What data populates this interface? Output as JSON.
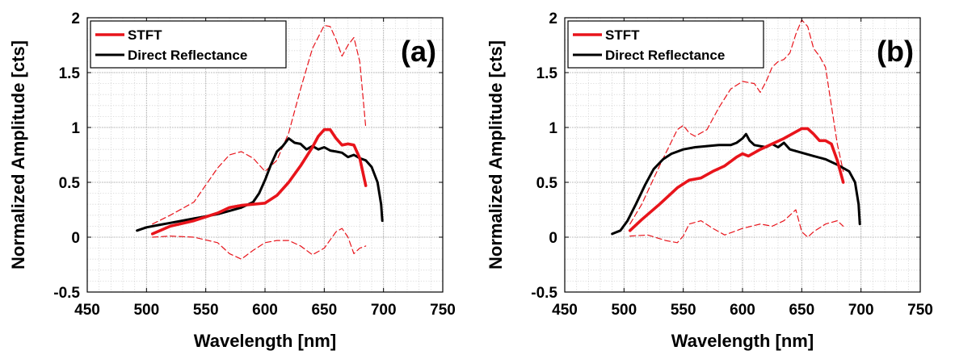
{
  "chart_data": [
    {
      "type": "line",
      "panel_label": "(a)",
      "xlabel": "Wavelength [nm]",
      "ylabel": "Normalized Amplitude [cts]",
      "xlim": [
        450,
        750
      ],
      "ylim": [
        -0.5,
        2
      ],
      "xticks": [
        "450",
        "500",
        "550",
        "600",
        "650",
        "700",
        "750"
      ],
      "yticks": [
        "-0.5",
        "0",
        "0.5",
        "1",
        "1.5",
        "2"
      ],
      "grid": "major and minor, dotted",
      "legend_position": "top-left",
      "legend": [
        "STFT",
        "Direct Reflectance"
      ],
      "colors": {
        "stft": "#e8141b",
        "direct": "#000000"
      },
      "series": [
        {
          "name": "STFT",
          "style": "solid",
          "color": "#e8141b",
          "x": [
            505,
            520,
            540,
            560,
            570,
            580,
            590,
            600,
            610,
            620,
            630,
            640,
            645,
            650,
            655,
            660,
            665,
            670,
            675,
            680,
            685
          ],
          "y": [
            0.03,
            0.1,
            0.15,
            0.22,
            0.27,
            0.29,
            0.3,
            0.31,
            0.38,
            0.5,
            0.65,
            0.82,
            0.92,
            0.98,
            0.98,
            0.9,
            0.84,
            0.85,
            0.84,
            0.72,
            0.47
          ]
        },
        {
          "name": "STFT upper bound",
          "style": "dashed",
          "color": "#e8141b",
          "x": [
            505,
            520,
            540,
            560,
            570,
            580,
            590,
            600,
            610,
            620,
            630,
            640,
            650,
            655,
            660,
            665,
            670,
            675,
            680,
            685
          ],
          "y": [
            0.12,
            0.2,
            0.32,
            0.63,
            0.75,
            0.78,
            0.72,
            0.6,
            0.7,
            0.95,
            1.35,
            1.72,
            1.93,
            1.92,
            1.8,
            1.65,
            1.75,
            1.82,
            1.6,
            1.0
          ]
        },
        {
          "name": "STFT lower bound",
          "style": "dashed",
          "color": "#e8141b",
          "x": [
            505,
            520,
            540,
            560,
            570,
            580,
            590,
            600,
            610,
            620,
            630,
            640,
            650,
            660,
            665,
            670,
            675,
            680,
            685
          ],
          "y": [
            0.0,
            0.01,
            0.0,
            -0.05,
            -0.15,
            -0.2,
            -0.12,
            -0.05,
            -0.03,
            -0.03,
            -0.08,
            -0.16,
            -0.1,
            0.05,
            0.08,
            0.0,
            -0.15,
            -0.1,
            -0.08
          ]
        },
        {
          "name": "Direct Reflectance",
          "style": "solid",
          "color": "#000000",
          "x": [
            492,
            500,
            510,
            520,
            530,
            540,
            550,
            560,
            570,
            580,
            590,
            595,
            600,
            605,
            610,
            615,
            620,
            625,
            630,
            635,
            640,
            645,
            650,
            655,
            660,
            665,
            670,
            675,
            680,
            685,
            690,
            695,
            698,
            699
          ],
          "y": [
            0.06,
            0.09,
            0.11,
            0.13,
            0.15,
            0.17,
            0.19,
            0.21,
            0.24,
            0.27,
            0.32,
            0.4,
            0.52,
            0.66,
            0.78,
            0.83,
            0.9,
            0.86,
            0.85,
            0.8,
            0.83,
            0.8,
            0.82,
            0.79,
            0.78,
            0.77,
            0.73,
            0.75,
            0.72,
            0.7,
            0.64,
            0.5,
            0.3,
            0.15
          ]
        }
      ]
    },
    {
      "type": "line",
      "panel_label": "(b)",
      "xlabel": "Wavelength [nm]",
      "ylabel": "Normalized Amplitude [cts]",
      "xlim": [
        450,
        750
      ],
      "ylim": [
        -0.5,
        2
      ],
      "xticks": [
        "450",
        "500",
        "550",
        "600",
        "650",
        "700",
        "750"
      ],
      "yticks": [
        "-0.5",
        "0",
        "0.5",
        "1",
        "1.5",
        "2"
      ],
      "grid": "major and minor, dotted",
      "legend_position": "top-left",
      "legend": [
        "STFT",
        "Direct Reflectance"
      ],
      "colors": {
        "stft": "#e8141b",
        "direct": "#000000"
      },
      "series": [
        {
          "name": "STFT",
          "style": "solid",
          "color": "#e8141b",
          "x": [
            505,
            515,
            530,
            545,
            555,
            565,
            575,
            585,
            595,
            600,
            605,
            615,
            625,
            635,
            645,
            650,
            655,
            660,
            665,
            670,
            675,
            680,
            685
          ],
          "y": [
            0.06,
            0.16,
            0.3,
            0.45,
            0.52,
            0.54,
            0.6,
            0.65,
            0.73,
            0.76,
            0.74,
            0.8,
            0.85,
            0.9,
            0.96,
            0.99,
            0.99,
            0.94,
            0.88,
            0.88,
            0.85,
            0.7,
            0.5
          ]
        },
        {
          "name": "STFT upper bound",
          "style": "dashed",
          "color": "#e8141b",
          "x": [
            505,
            515,
            530,
            545,
            550,
            555,
            560,
            570,
            580,
            590,
            600,
            610,
            615,
            620,
            625,
            630,
            635,
            640,
            645,
            650,
            655,
            660,
            665,
            670,
            675,
            680,
            685
          ],
          "y": [
            0.12,
            0.3,
            0.65,
            0.98,
            1.02,
            0.95,
            0.92,
            0.98,
            1.18,
            1.35,
            1.42,
            1.4,
            1.32,
            1.42,
            1.55,
            1.6,
            1.62,
            1.68,
            1.85,
            1.98,
            1.92,
            1.72,
            1.65,
            1.55,
            1.2,
            0.85,
            0.6
          ]
        },
        {
          "name": "STFT lower bound",
          "style": "dashed",
          "color": "#e8141b",
          "x": [
            505,
            520,
            535,
            545,
            550,
            555,
            565,
            575,
            585,
            600,
            615,
            625,
            635,
            640,
            645,
            650,
            655,
            660,
            670,
            680,
            685
          ],
          "y": [
            0.01,
            0.02,
            -0.03,
            -0.05,
            0.01,
            0.12,
            0.15,
            0.08,
            0.02,
            0.08,
            0.12,
            0.1,
            0.15,
            0.2,
            0.25,
            0.05,
            0.0,
            0.05,
            0.12,
            0.15,
            0.1
          ]
        },
        {
          "name": "Direct Reflectance",
          "style": "solid",
          "color": "#000000",
          "x": [
            490,
            497,
            503,
            510,
            518,
            525,
            533,
            540,
            550,
            560,
            570,
            580,
            590,
            595,
            600,
            603,
            606,
            610,
            620,
            625,
            630,
            635,
            640,
            650,
            660,
            670,
            680,
            685,
            690,
            695,
            698,
            699
          ],
          "y": [
            0.03,
            0.06,
            0.15,
            0.3,
            0.48,
            0.62,
            0.71,
            0.76,
            0.8,
            0.82,
            0.83,
            0.84,
            0.84,
            0.86,
            0.9,
            0.94,
            0.88,
            0.84,
            0.82,
            0.85,
            0.82,
            0.86,
            0.8,
            0.77,
            0.74,
            0.71,
            0.66,
            0.63,
            0.6,
            0.5,
            0.3,
            0.12
          ]
        }
      ]
    }
  ]
}
